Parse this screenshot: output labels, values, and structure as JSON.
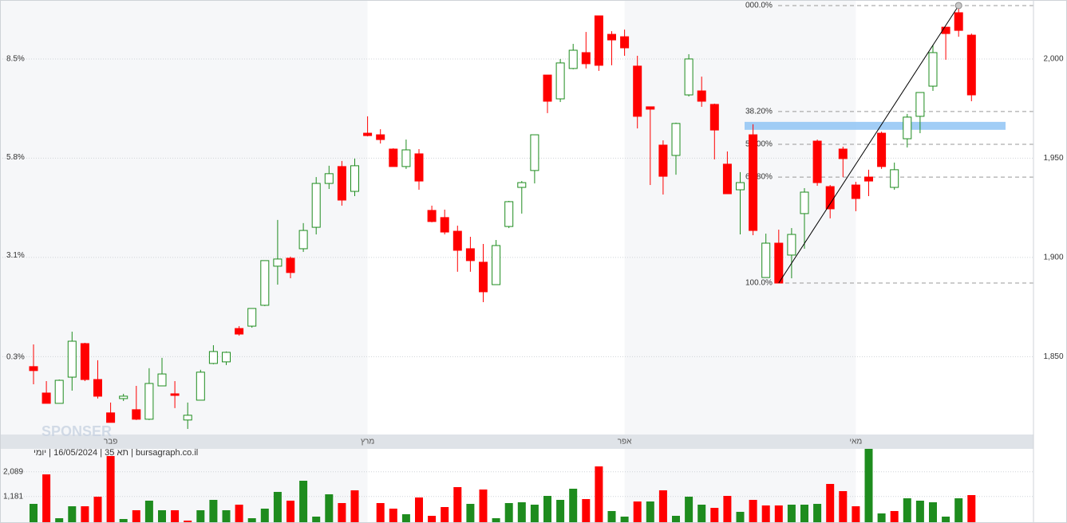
{
  "chart_data": {
    "type": "candlestick",
    "categories": [
      null,
      null,
      null,
      null,
      null,
      null,
      "פבר",
      null,
      null,
      null,
      null,
      null,
      null,
      null,
      null,
      null,
      null,
      null,
      null,
      null,
      null,
      null,
      null,
      null,
      null,
      null,
      "מרץ",
      null,
      null,
      null,
      null,
      null,
      null,
      null,
      null,
      null,
      null,
      null,
      null,
      null,
      null,
      null,
      null,
      null,
      null,
      null,
      "אפר",
      null,
      null,
      null,
      null,
      null,
      null,
      null,
      null,
      null,
      null,
      null,
      null,
      null,
      null,
      null,
      null,
      null,
      "מאי",
      null,
      null,
      null,
      null,
      null,
      null,
      null,
      null,
      null
    ],
    "open": [
      1845.0,
      1831.7,
      1826.5,
      1839.7,
      1856.6,
      1838.5,
      1821.7,
      1828.9,
      1823.3,
      1818.5,
      1835.3,
      1831.3,
      1818.1,
      1828.1,
      1846.6,
      1847.4,
      1864.2,
      1865.4,
      1875.9,
      1895.6,
      1899.6,
      1904.4,
      1915.2,
      1937.3,
      1945.8,
      1933.3,
      1962.6,
      1961.8,
      1954.6,
      1945.8,
      1952.2,
      1923.7,
      1920.1,
      1913.2,
      1904.4,
      1897.6,
      1886.3,
      1915.6,
      1935.3,
      1943.8,
      1991.9,
      1979.9,
      1995.2,
      2003.2,
      2021.7,
      2012.4,
      2011.2,
      1996.4,
      1975.9,
      1956.6,
      1951.4,
      1981.9,
      1983.9,
      1977.1,
      1947.0,
      1934.1,
      1961.8,
      1889.9,
      1907.2,
      1901.2,
      1922.1,
      1958.6,
      1935.7,
      1954.6,
      1936.5,
      1940.5,
      1962.6,
      1935.3,
      1959.8,
      1971.1,
      1986.3,
      2016.0,
      2023.3,
      2012.0
    ],
    "high": [
      1856.2,
      1837.7,
      1838.5,
      1862.6,
      1857.0,
      1848.2,
      1826.9,
      1831.3,
      1835.3,
      1844.2,
      1849.4,
      1837.7,
      1826.9,
      1843.4,
      1855.8,
      1852.6,
      1865.4,
      1874.3,
      1898.4,
      1918.9,
      1900.4,
      1917.3,
      1940.5,
      1946.2,
      1948.6,
      1949.8,
      1971.1,
      1964.6,
      1955.0,
      1959.4,
      1954.6,
      1926.1,
      1924.1,
      1916.0,
      1910.4,
      1906.8,
      1908.8,
      1928.5,
      1938.5,
      1961.8,
      1991.9,
      2000.0,
      2007.6,
      2013.6,
      2021.7,
      2014.0,
      2014.8,
      2001.6,
      1975.9,
      1959.0,
      1967.9,
      2002.4,
      1991.1,
      1977.5,
      1953.4,
      1943.0,
      1967.1,
      1912.0,
      1914.0,
      1914.8,
      1934.9,
      1959.4,
      1936.5,
      1955.8,
      1938.1,
      1944.2,
      1963.4,
      1947.8,
      1972.3,
      1983.1,
      2007.2,
      2016.0,
      2026.9,
      2012.8
    ],
    "low": [
      1836.1,
      1826.5,
      1826.5,
      1832.9,
      1837.7,
      1828.9,
      1816.9,
      1827.7,
      1818.1,
      1818.1,
      1835.3,
      1824.1,
      1813.6,
      1828.1,
      1846.2,
      1845.8,
      1860.6,
      1864.6,
      1875.5,
      1886.3,
      1889.5,
      1902.8,
      1911.6,
      1934.5,
      1926.1,
      1930.9,
      1961.0,
      1957.4,
      1945.8,
      1944.6,
      1934.1,
      1917.7,
      1911.6,
      1892.8,
      1892.8,
      1877.5,
      1886.3,
      1914.8,
      1922.1,
      1937.3,
      1972.7,
      1978.3,
      1994.8,
      1995.2,
      1994.0,
      1996.8,
      2001.6,
      1965.0,
      1936.5,
      1931.7,
      1941.7,
      1981.1,
      1975.9,
      1949.4,
      1932.1,
      1911.6,
      1911.2,
      1889.9,
      1887.1,
      1889.5,
      1904.4,
      1936.1,
      1919.7,
      1940.5,
      1923.3,
      1930.9,
      1944.6,
      1934.1,
      1955.4,
      1962.6,
      1983.9,
      1999.6,
      2011.2,
      1978.7
    ],
    "close": [
      1843.0,
      1826.5,
      1838.1,
      1857.8,
      1838.5,
      1830.1,
      1816.9,
      1830.1,
      1818.5,
      1836.5,
      1841.3,
      1830.5,
      1820.5,
      1842.2,
      1852.6,
      1852.2,
      1861.4,
      1874.3,
      1898.4,
      1899.2,
      1892.4,
      1913.6,
      1937.3,
      1942.2,
      1928.9,
      1946.2,
      1961.4,
      1959.4,
      1945.8,
      1954.2,
      1938.5,
      1918.1,
      1912.8,
      1903.6,
      1898.4,
      1882.7,
      1906.0,
      1928.1,
      1937.7,
      1961.8,
      1978.7,
      1998.0,
      2004.4,
      1997.6,
      1996.8,
      2009.6,
      2005.6,
      1971.1,
      1974.7,
      1940.9,
      1967.5,
      2000.0,
      1978.7,
      1964.2,
      1932.1,
      1937.7,
      1913.6,
      1907.2,
      1887.1,
      1911.6,
      1932.9,
      1937.7,
      1924.5,
      1949.8,
      1929.7,
      1938.5,
      1945.8,
      1944.2,
      1970.7,
      1983.1,
      2003.2,
      2012.8,
      2014.4,
      1981.9
    ],
    "up_color": "#1e8c1e",
    "down_color": "#ff0000",
    "ylim": [
      1810.8,
      2028.9
    ],
    "yticks": [
      {
        "value": 2000,
        "label": "2,000"
      },
      {
        "value": 1950,
        "label": "1,950"
      },
      {
        "value": 1900,
        "label": "1,900"
      },
      {
        "value": 1850,
        "label": "1,850"
      }
    ],
    "y2lim": [
      -1.83,
      10.08
    ],
    "y2ticks": [
      {
        "value": 8.5,
        "label": "8.5%"
      },
      {
        "value": 5.8,
        "label": "5.8%"
      },
      {
        "value": 3.1,
        "label": "3.1%"
      },
      {
        "value": 0.3,
        "label": "0.3%"
      }
    ],
    "grid": true,
    "fibonacci": {
      "high": 2026.9,
      "low": 1887.1,
      "levels": [
        {
          "value": 0,
          "label": "000.0%"
        },
        {
          "value": 38.2,
          "label": "38.20%"
        },
        {
          "value": 50,
          "label": "50.00%"
        },
        {
          "value": 61.8,
          "label": "61.80%"
        },
        {
          "value": 100,
          "label": "100.0%"
        }
      ]
    },
    "zone": {
      "range": [
        1964.3,
        1968.3
      ],
      "color": "#90c4f5"
    },
    "volume": {
      "values": [
        908,
        1992,
        381,
        820,
        820,
        1172,
        2666,
        352,
        674,
        1026,
        674,
        674,
        293,
        674,
        1055,
        674,
        879,
        381,
        733,
        1348,
        1026,
        1758,
        440,
        1260,
        938,
        1406,
        234,
        938,
        733,
        527,
        1143,
        469,
        791,
        1524,
        908,
        1436,
        381,
        938,
        967,
        879,
        1201,
        1055,
        1465,
        1084,
        2285,
        645,
        440,
        996,
        996,
        1406,
        469,
        1172,
        879,
        762,
        1201,
        615,
        1055,
        850,
        850,
        879,
        879,
        908,
        1641,
        1377,
        820,
        2930,
        557,
        645,
        1113,
        1026,
        967,
        440,
        1113,
        1231
      ],
      "colors": [
        "#1e8c1e",
        "#ff0000",
        "#1e8c1e",
        "#1e8c1e",
        "#ff0000",
        "#ff0000",
        "#ff0000",
        "#1e8c1e",
        "#ff0000",
        "#1e8c1e",
        "#1e8c1e",
        "#ff0000",
        "#ff0000",
        "#1e8c1e",
        "#1e8c1e",
        "#1e8c1e",
        "#ff0000",
        "#1e8c1e",
        "#1e8c1e",
        "#1e8c1e",
        "#ff0000",
        "#1e8c1e",
        "#1e8c1e",
        "#1e8c1e",
        "#ff0000",
        "#ff0000",
        "#1e8c1e",
        "#ff0000",
        "#ff0000",
        "#1e8c1e",
        "#ff0000",
        "#ff0000",
        "#ff0000",
        "#ff0000",
        "#1e8c1e",
        "#ff0000",
        "#1e8c1e",
        "#1e8c1e",
        "#1e8c1e",
        "#1e8c1e",
        "#1e8c1e",
        "#1e8c1e",
        "#1e8c1e",
        "#ff0000",
        "#ff0000",
        "#1e8c1e",
        "#1e8c1e",
        "#ff0000",
        "#1e8c1e",
        "#ff0000",
        "#1e8c1e",
        "#1e8c1e",
        "#1e8c1e",
        "#ff0000",
        "#ff0000",
        "#1e8c1e",
        "#ff0000",
        "#ff0000",
        "#ff0000",
        "#1e8c1e",
        "#1e8c1e",
        "#1e8c1e",
        "#ff0000",
        "#ff0000",
        "#ff0000",
        "#1e8c1e",
        "#1e8c1e",
        "#ff0000",
        "#1e8c1e",
        "#1e8c1e",
        "#1e8c1e",
        "#1e8c1e",
        "#1e8c1e",
        "#ff0000"
      ],
      "ylim": [
        0,
        2930
      ],
      "yticks": [
        {
          "value": 2089,
          "label": "2,089"
        },
        {
          "value": 1181,
          "label": "1,181"
        }
      ]
    },
    "info": "bursagraph.co.il | תא 35 | 16/05/2024 | יומי",
    "watermark": "SPONSER"
  }
}
